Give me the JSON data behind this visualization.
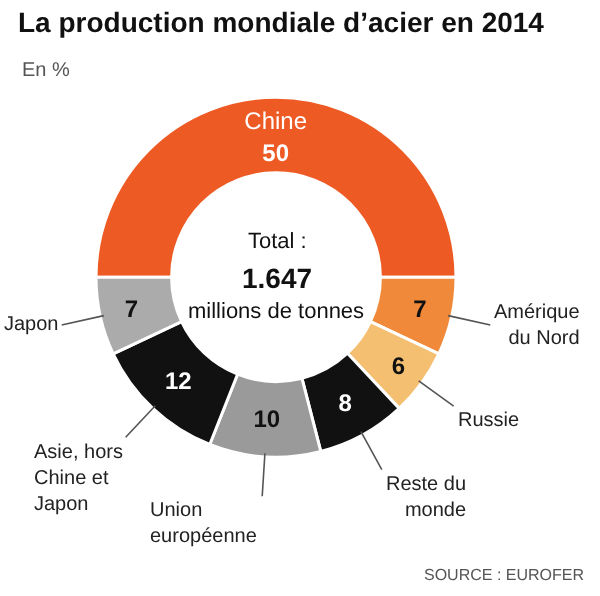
{
  "chart_data": {
    "type": "donut",
    "title": "La production mondiale d’acier en 2014",
    "subtitle": "En %",
    "categories": [
      "Chine",
      "Amérique du Nord",
      "Russie",
      "Reste du monde",
      "Union européenne",
      "Asie, hors Chine et Japon",
      "Japon"
    ],
    "values": [
      50,
      7,
      6,
      8,
      10,
      12,
      7
    ],
    "colors": [
      "#ee5a24",
      "#f08a3a",
      "#f5bf72",
      "#111111",
      "#9a9a9a",
      "#111111",
      "#ababab"
    ],
    "data_labels": true,
    "legend": false,
    "annotations": [
      "Total :",
      "1.647",
      "millions de tonnes",
      "SOURCE : EUROFER"
    ]
  }
}
